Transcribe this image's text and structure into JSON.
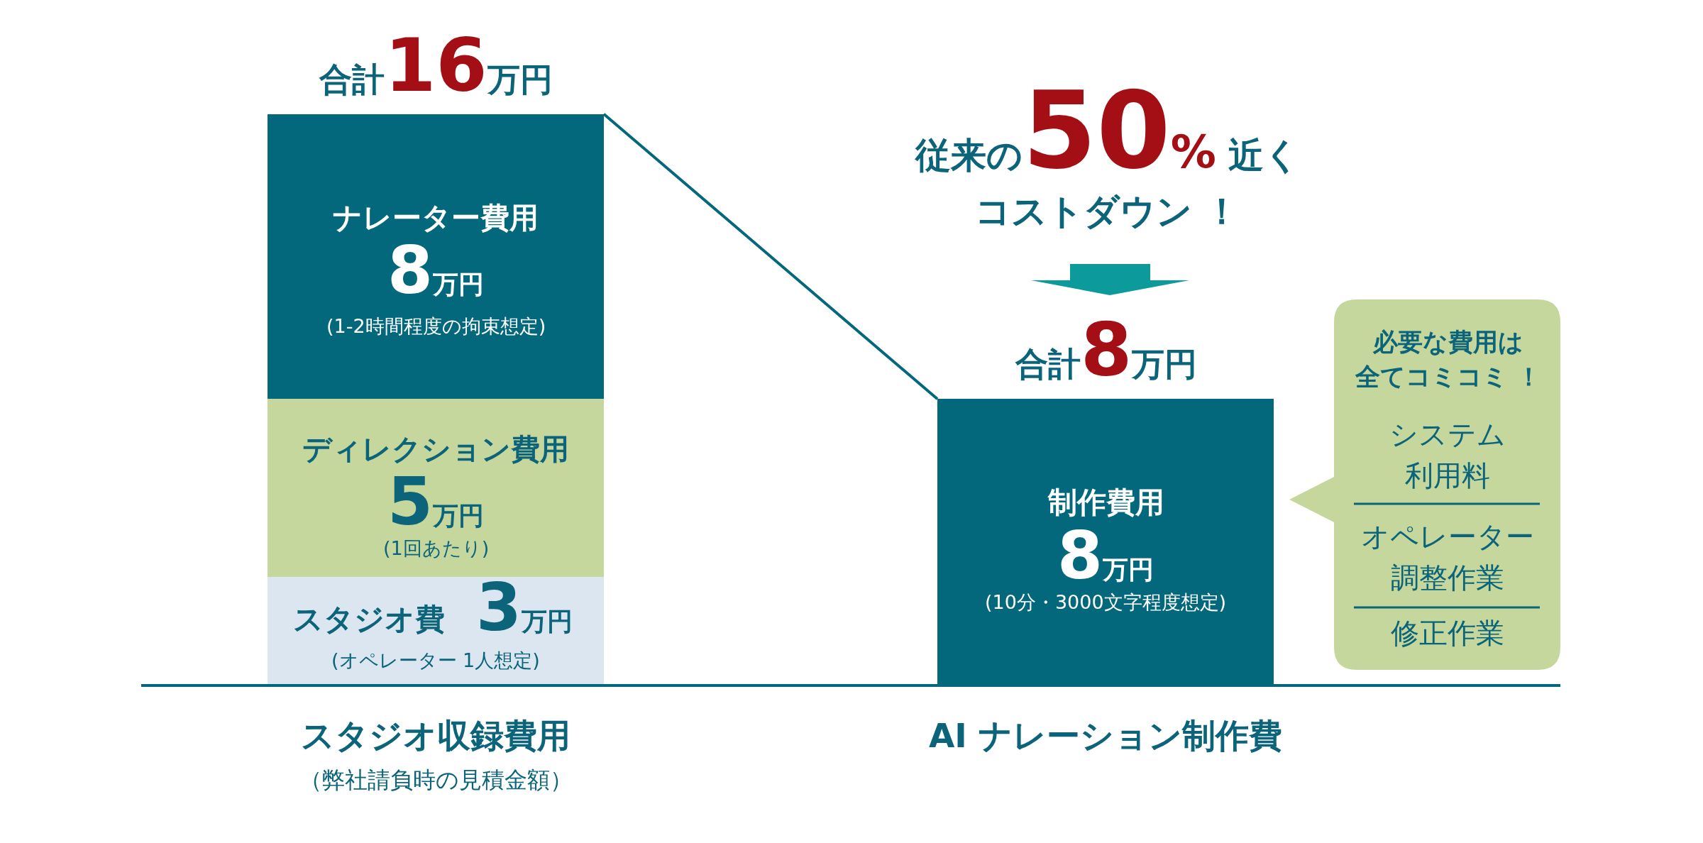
{
  "chart_data": {
    "type": "bar",
    "stacked": true,
    "tick_labels": "x",
    "categories": [
      "スタジオ収録費用",
      "AI ナレーション制作費"
    ],
    "series": [
      {
        "name": "スタジオ費",
        "color": "#dce6f0",
        "values": [
          3,
          null
        ],
        "value_labels": [
          "3万円",
          null
        ]
      },
      {
        "name": "ディレクション費用",
        "color": "#c5d79d",
        "values": [
          5,
          null
        ],
        "value_labels": [
          "5万円",
          null
        ]
      },
      {
        "name": "ナレーター費用",
        "color": "#04687c",
        "values": [
          8,
          null
        ],
        "value_labels": [
          "8万円",
          null
        ]
      },
      {
        "name": "制作費用",
        "color": "#04687c",
        "values": [
          null,
          8
        ],
        "value_labels": [
          null,
          "8万円"
        ]
      }
    ],
    "totals": [
      "合計16万円",
      "合計8万円"
    ],
    "annotations": [
      "従来の50% 近く",
      "コストダウン ！",
      "必要な費用は",
      "全てコミコミ ！",
      "システム",
      "利用料",
      "オペレーター",
      "調整作業",
      "修正作業",
      "(1-2時間程度の拘束想定)",
      "(1回あたり)",
      "(オペレーター 1人想定)",
      "(10分・3000文字程度想定)",
      "（弊社請負時の見積金額）"
    ]
  }
}
